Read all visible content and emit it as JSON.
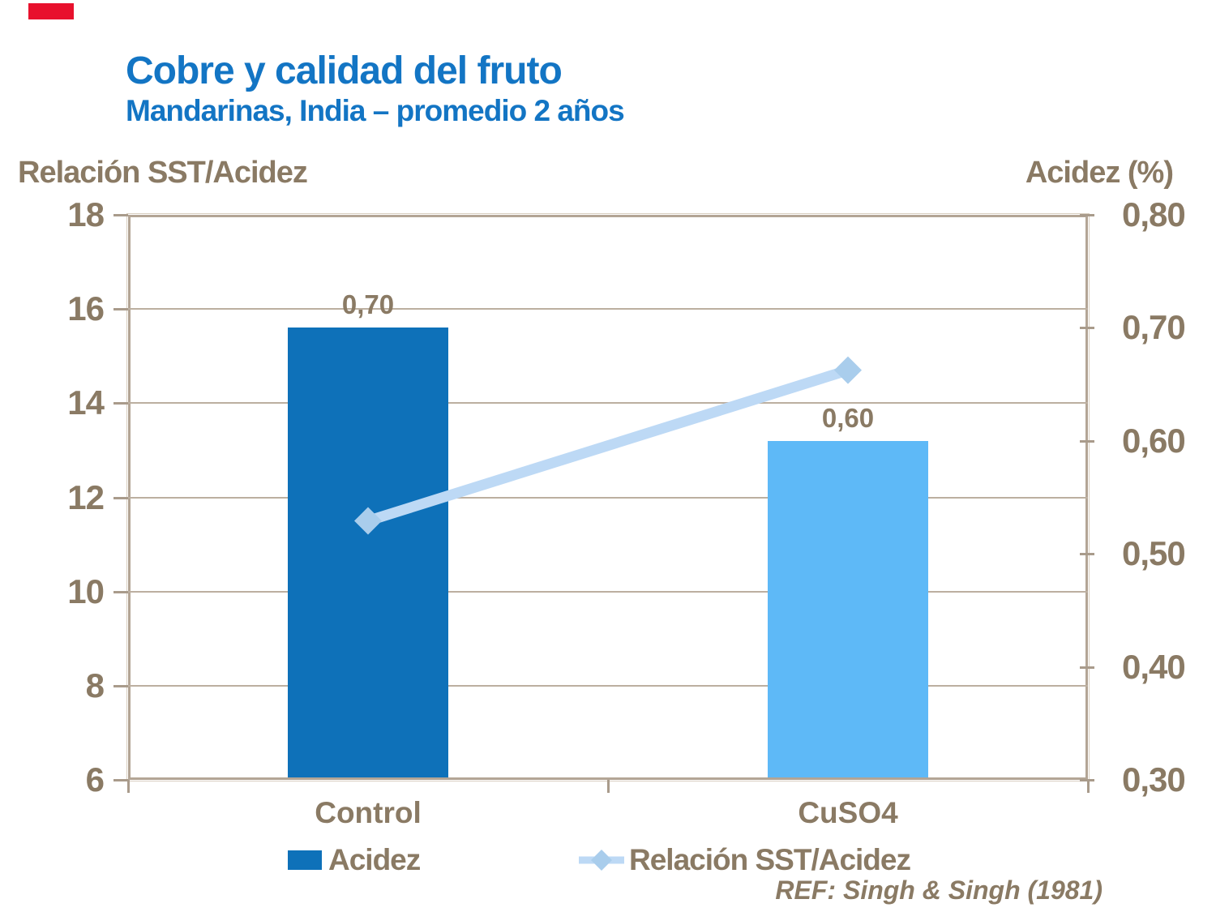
{
  "slide": {
    "title": "Cobre y calidad del fruto",
    "subtitle": "Mandarinas, India – promedio 2 años",
    "reference": "REF: Singh & Singh (1981)",
    "accent_color": "#e8112d",
    "title_color": "#1375c4",
    "text_color": "#8a7a64",
    "frame_color": "#b3a595"
  },
  "chart_data": {
    "type": "bar",
    "subtype": "combo bar + line, dual axis",
    "categories": [
      "Control",
      "CuSO4"
    ],
    "series": [
      {
        "name": "Acidez",
        "type": "bar",
        "axis": "right",
        "values": [
          0.7,
          0.6
        ],
        "labels": [
          "0,70",
          "0,60"
        ],
        "colors": [
          "#0e71b9",
          "#5eb9f7"
        ]
      },
      {
        "name": "Relación SST/Acidez",
        "type": "line",
        "axis": "left",
        "values": [
          11.5,
          14.7
        ],
        "color": "#bdd9f5",
        "marker": "diamond",
        "marker_color": "#a9cdec"
      }
    ],
    "left_axis": {
      "title": "Relación SST/Acidez",
      "ticks": [
        "18",
        "16",
        "14",
        "12",
        "10",
        "8",
        "6"
      ],
      "min": 6,
      "max": 18
    },
    "right_axis": {
      "title": "Acidez (%)",
      "ticks": [
        "0,80",
        "0,70",
        "0,60",
        "0,50",
        "0,40",
        "0,30"
      ],
      "min": 0.3,
      "max": 0.8
    },
    "grid": true,
    "legend_position": "bottom"
  }
}
